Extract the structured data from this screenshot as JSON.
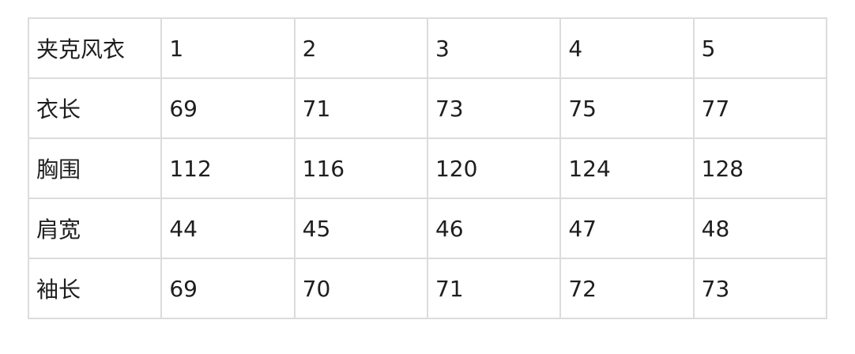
{
  "table": {
    "rows": [
      [
        "夹克风衣",
        "1",
        "2",
        "3",
        "4",
        "5"
      ],
      [
        "衣长",
        "69",
        "71",
        "73",
        "75",
        "77"
      ],
      [
        "胸围",
        "112",
        "116",
        "120",
        "124",
        "128"
      ],
      [
        "肩宽",
        "44",
        "45",
        "46",
        "47",
        "48"
      ],
      [
        "袖长",
        "69",
        "70",
        "71",
        "72",
        "73"
      ]
    ]
  }
}
